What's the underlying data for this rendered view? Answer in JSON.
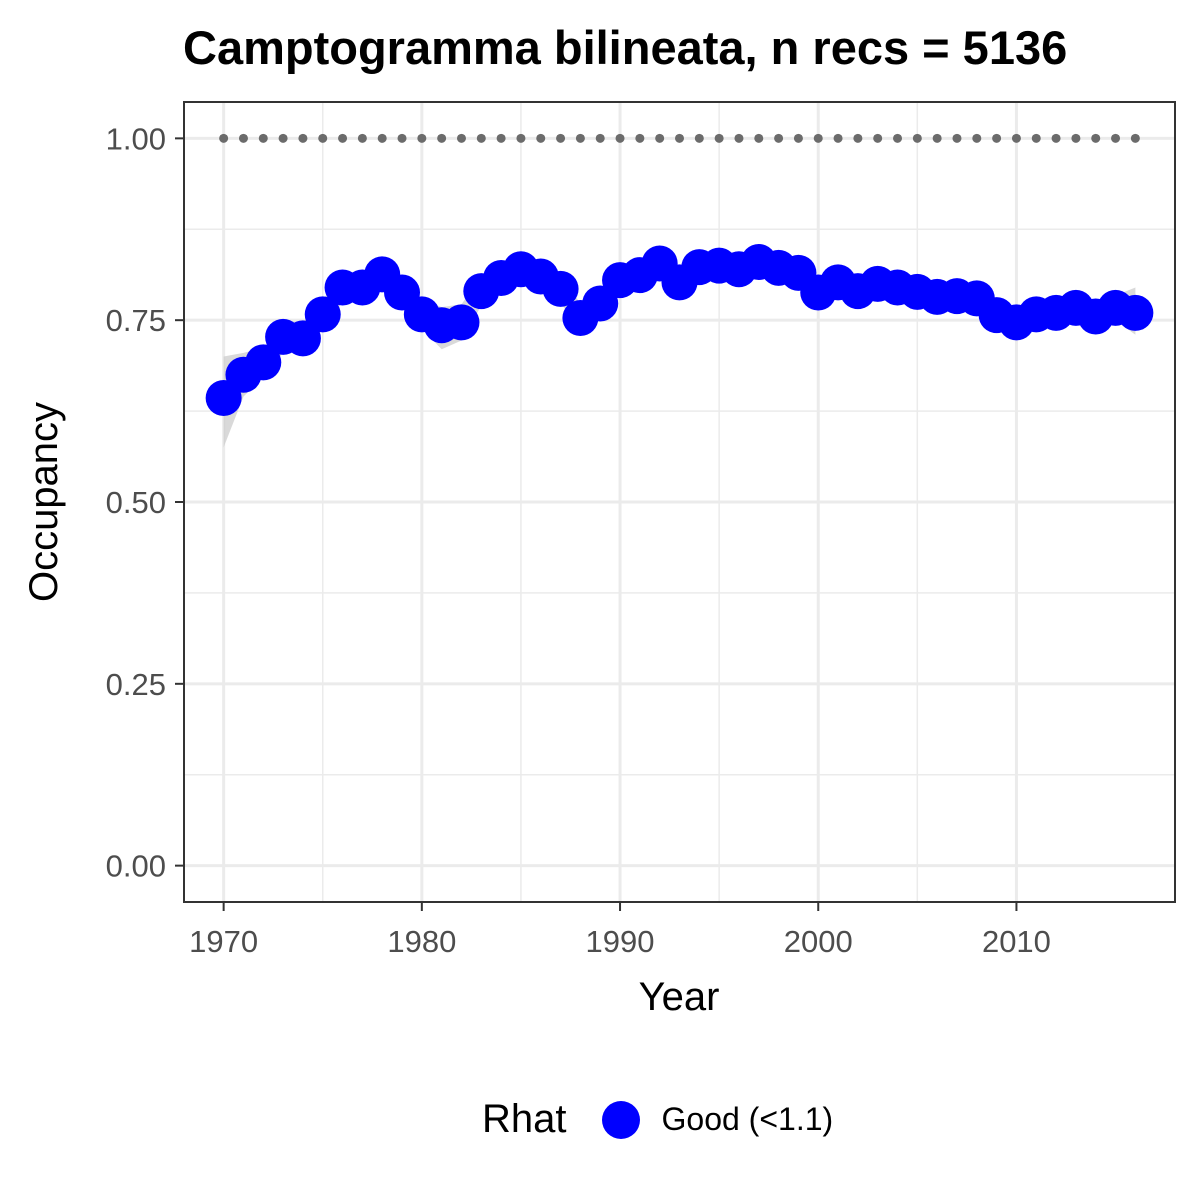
{
  "chart_data": {
    "type": "scatter",
    "title": "Camptogramma bilineata, n recs = 5136",
    "xlabel": "Year",
    "ylabel": "Occupancy",
    "xlim": [
      1968,
      2018
    ],
    "ylim": [
      -0.05,
      1.05
    ],
    "x_ticks": [
      1970,
      1980,
      1990,
      2000,
      2010
    ],
    "y_ticks": [
      0.0,
      0.25,
      0.5,
      0.75,
      1.0
    ],
    "y_tick_labels": [
      "0.00",
      "0.25",
      "0.50",
      "0.75",
      "1.00"
    ],
    "grid": true,
    "reference_line": {
      "y": 1.0,
      "style": "dotted",
      "color": "#6b6b6b"
    },
    "colors": {
      "points": "#0000ff",
      "ribbon": "#cccccc",
      "grid": "#ebebeb",
      "panel_border": "#333333"
    },
    "legend": {
      "title": "Rhat",
      "placement": "bottom",
      "entries": [
        {
          "label": "Good (<1.1)",
          "color": "#0000ff"
        }
      ]
    },
    "series": [
      {
        "name": "Good (<1.1)",
        "x": [
          1970,
          1971,
          1972,
          1973,
          1974,
          1975,
          1976,
          1977,
          1978,
          1979,
          1980,
          1981,
          1982,
          1983,
          1984,
          1985,
          1986,
          1987,
          1988,
          1989,
          1990,
          1991,
          1992,
          1993,
          1994,
          1995,
          1996,
          1997,
          1998,
          1999,
          2000,
          2001,
          2002,
          2003,
          2004,
          2005,
          2006,
          2007,
          2008,
          2009,
          2010,
          2011,
          2012,
          2013,
          2014,
          2015,
          2016
        ],
        "y": [
          0.643,
          0.675,
          0.692,
          0.727,
          0.725,
          0.758,
          0.795,
          0.795,
          0.813,
          0.788,
          0.758,
          0.743,
          0.747,
          0.79,
          0.808,
          0.82,
          0.81,
          0.793,
          0.753,
          0.773,
          0.805,
          0.812,
          0.828,
          0.802,
          0.823,
          0.825,
          0.82,
          0.83,
          0.822,
          0.815,
          0.788,
          0.802,
          0.79,
          0.8,
          0.795,
          0.789,
          0.782,
          0.783,
          0.78,
          0.757,
          0.747,
          0.758,
          0.76,
          0.767,
          0.755,
          0.767,
          0.76
        ],
        "ci_lower": [
          0.575,
          0.645,
          0.672,
          0.705,
          0.705,
          0.738,
          0.775,
          0.777,
          0.795,
          0.77,
          0.738,
          0.71,
          0.722,
          0.77,
          0.79,
          0.803,
          0.793,
          0.775,
          0.73,
          0.755,
          0.788,
          0.795,
          0.81,
          0.785,
          0.807,
          0.808,
          0.803,
          0.813,
          0.805,
          0.798,
          0.772,
          0.786,
          0.774,
          0.784,
          0.779,
          0.773,
          0.766,
          0.767,
          0.764,
          0.74,
          0.73,
          0.741,
          0.743,
          0.75,
          0.738,
          0.75,
          0.73
        ],
        "ci_upper": [
          0.7,
          0.705,
          0.712,
          0.75,
          0.747,
          0.778,
          0.815,
          0.813,
          0.832,
          0.806,
          0.778,
          0.768,
          0.772,
          0.81,
          0.826,
          0.837,
          0.827,
          0.812,
          0.773,
          0.791,
          0.822,
          0.829,
          0.846,
          0.82,
          0.84,
          0.842,
          0.837,
          0.847,
          0.839,
          0.832,
          0.805,
          0.818,
          0.806,
          0.816,
          0.811,
          0.806,
          0.799,
          0.8,
          0.797,
          0.774,
          0.764,
          0.775,
          0.777,
          0.784,
          0.772,
          0.784,
          0.795
        ]
      }
    ]
  }
}
